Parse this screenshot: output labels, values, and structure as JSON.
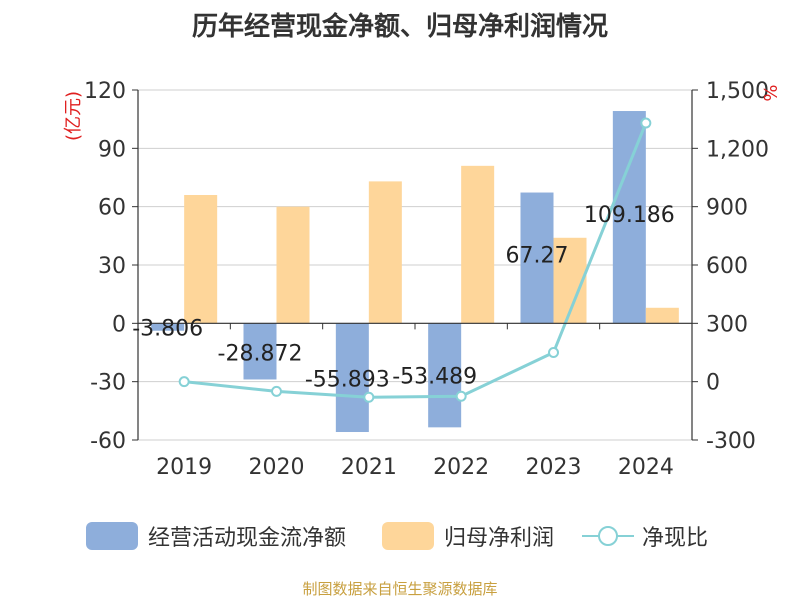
{
  "chart_data": {
    "type": "bar",
    "title": "历年经营现金净额、归母净利润情况",
    "categories": [
      "2019",
      "2020",
      "2021",
      "2022",
      "2023",
      "2024"
    ],
    "y_left": {
      "unit": "(亿元)",
      "range": [
        -60,
        120
      ],
      "ticks": [
        "120",
        "90",
        "60",
        "30",
        "0",
        "-30",
        "-60"
      ]
    },
    "y_right": {
      "unit": "%",
      "range": [
        -300,
        1500
      ],
      "ticks": [
        "1,500",
        "1,200",
        "900",
        "600",
        "300",
        "0",
        "-300"
      ]
    },
    "series": [
      {
        "name": "经营活动现金流净额",
        "type": "bar",
        "axis": "left",
        "color": "#8eaedb",
        "values": [
          -3.806,
          -28.872,
          -55.893,
          -53.489,
          67.27,
          109.186
        ],
        "labels": [
          "-3.806",
          "-28.872",
          "-55.893",
          "-53.489",
          "67.27",
          "109.186"
        ]
      },
      {
        "name": "归母净利润",
        "type": "bar",
        "axis": "left",
        "color": "#fed69a",
        "values": [
          66,
          60,
          73,
          81,
          44,
          8
        ]
      },
      {
        "name": "净现比",
        "type": "line",
        "axis": "right",
        "color": "#86d1d6",
        "values": [
          0,
          -50,
          -80,
          -75,
          150,
          1330
        ]
      }
    ],
    "grid": true,
    "legend_position": "bottom"
  },
  "source": "制图数据来自恒生聚源数据库"
}
